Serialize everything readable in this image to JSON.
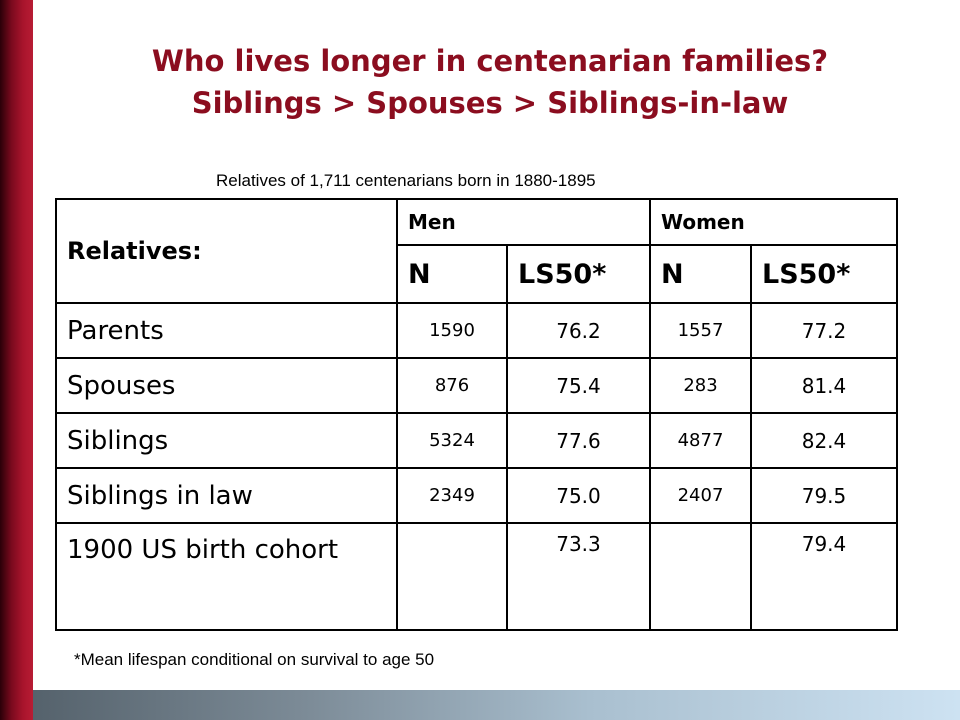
{
  "title": {
    "line1": "Who lives longer in centenarian families?",
    "line2": "Siblings > Spouses > Siblings-in-law"
  },
  "subtitle": "Relatives of 1,711 centenarians born in 1880-1895",
  "table": {
    "header": {
      "relatives": "Relatives:",
      "men": "Men",
      "women": "Women",
      "men_n": "N",
      "men_ls50": "LS50*",
      "women_n": "N",
      "women_ls50": "LS50*"
    },
    "rows": [
      {
        "label": "Parents",
        "men_n": "1590",
        "men_ls50": "76.2",
        "women_n": "1557",
        "women_ls50": "77.2"
      },
      {
        "label": "Spouses",
        "men_n": "876",
        "men_ls50": "75.4",
        "women_n": "283",
        "women_ls50": "81.4"
      },
      {
        "label": "Siblings",
        "men_n": "5324",
        "men_ls50": "77.6",
        "women_n": "4877",
        "women_ls50": "82.4"
      },
      {
        "label": "Siblings in law",
        "men_n": "2349",
        "men_ls50": "75.0",
        "women_n": "2407",
        "women_ls50": "79.5"
      },
      {
        "label": "1900 US birth cohort",
        "men_n": "",
        "men_ls50": "73.3",
        "women_n": "",
        "women_ls50": "79.4"
      }
    ]
  },
  "footnote": "*Mean lifespan conditional on survival to age 50",
  "colors": {
    "title": "#8b0d1f",
    "left_bar": "#a8142c",
    "bottom_bar_start": "#55626c",
    "bottom_bar_end": "#cde2f2"
  }
}
